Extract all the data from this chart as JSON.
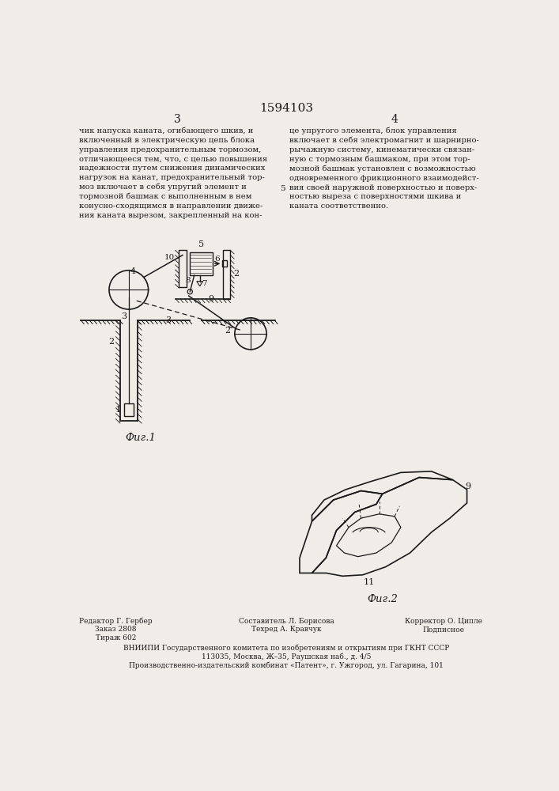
{
  "title": "1594103",
  "page_nums": [
    "3",
    "4"
  ],
  "left_text": "чик напуска каната, огибающего шкив, и\nвключенный в электрическую цепь блока\nуправления предохранительным тормозом,\nотличающееся тем, что, с целью повышения\nнадежности путем снижения динамических\nнагрузок на канат, предохранительный тор-\nмоз включает в себя упругий элемент и\nтормозной башмак с выполненным в нем\nконусно-сходящимся в направлении движе-\nния каната вырезом, закрепленный на кон-",
  "right_text": "це упругого элемента, блок управления\nвключает в себя электромагнит и шарнирно-\nрычажную систему, кинематически связан-\nную с тормозным башмаком, при этом тор-\nмозной башмак установлен с возможностью\nодновременного фрикционного взаимодейст-\nвия своей наружной поверхностью и поверх-\nностью выреза с поверхностями шкива и\nканата соответственно.",
  "right_num": "5",
  "fig1_label": "Фиг.1",
  "fig2_label": "Фиг.2",
  "footer_line1_left": "Редактор Г. Гербер",
  "footer_line1_center": "Составитель Л. Борисова",
  "footer_line1_right": "Корректор О. Ципле",
  "footer_line2_left": "Заказ 2808",
  "footer_line2_center": "Техред А. Кравчук",
  "footer_line2_right": "Подписное",
  "footer_line3_left": "Тираж 602",
  "footer_line4": "ВНИИПИ Государственного комитета по изобретениям и открытиям при ГКНТ СССР",
  "footer_line5": "113035, Москва, Ж–35, Раушская наб., д. 4/5",
  "footer_line6": "Производственно-издательский комбинат «Патент», г. Ужгород, ул. Гагарина, 101",
  "bg_color": "#f0ede8",
  "line_color": "#1a1a1a",
  "text_color": "#1a1a1a"
}
